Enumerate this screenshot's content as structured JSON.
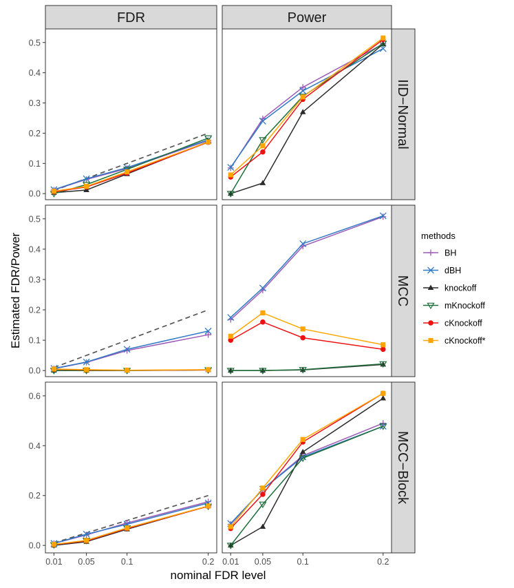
{
  "chart_data": {
    "type": "line",
    "ylabel": "Estimated FDR/Power",
    "xlabel": "nominal FDR level",
    "x": [
      0.01,
      0.05,
      0.1,
      0.2
    ],
    "x_tick_labels": [
      "0.01",
      "0.05",
      "0.1",
      "0.2"
    ],
    "columns": [
      "FDR",
      "Power"
    ],
    "rows": [
      "IID−Normal",
      "MCC",
      "MCC−Block"
    ],
    "legend_title": "methods",
    "reference_line": {
      "style": "dashed",
      "color": "#555555",
      "values": [
        0.01,
        0.05,
        0.1,
        0.2
      ]
    },
    "methods": [
      {
        "name": "BH",
        "color": "#9b59b6",
        "marker": "plus"
      },
      {
        "name": "dBH",
        "color": "#2f78c4",
        "marker": "cross"
      },
      {
        "name": "knockoff",
        "color": "#2b2b2b",
        "marker": "triangle-up"
      },
      {
        "name": "mKnockoff",
        "color": "#1e6e3a",
        "marker": "triangle-down"
      },
      {
        "name": "cKnockoff",
        "color": "#ee1111",
        "marker": "circle"
      },
      {
        "name": "cKnockoff*",
        "color": "#ffa500",
        "marker": "square"
      }
    ],
    "panels": [
      {
        "row": 0,
        "col": 0,
        "ylim": [
          -0.02,
          0.545
        ],
        "yticks": [
          0,
          0.1,
          0.2,
          0.3,
          0.4,
          0.5
        ],
        "ytick_labels": [
          "0.0",
          "0.1",
          "0.2",
          "0.3",
          "0.4",
          "0.5"
        ],
        "reference": true,
        "series": {
          "BH": [
            0.012,
            0.047,
            0.083,
            0.176
          ],
          "dBH": [
            0.013,
            0.049,
            0.086,
            0.178
          ],
          "knockoff": [
            0.003,
            0.012,
            0.065,
            0.172
          ],
          "mKnockoff": [
            0.0,
            0.03,
            0.08,
            0.184
          ],
          "cKnockoff": [
            0.006,
            0.022,
            0.068,
            0.17
          ],
          "cKnockoff*": [
            0.008,
            0.024,
            0.072,
            0.171
          ]
        }
      },
      {
        "row": 0,
        "col": 1,
        "ylim": [
          -0.02,
          0.545
        ],
        "yticks": [
          0,
          0.1,
          0.2,
          0.3,
          0.4,
          0.5
        ],
        "ytick_labels": [
          "0.0",
          "0.1",
          "0.2",
          "0.3",
          "0.4",
          "0.5"
        ],
        "reference": false,
        "series": {
          "BH": [
            0.085,
            0.248,
            0.352,
            0.495
          ],
          "dBH": [
            0.087,
            0.24,
            0.34,
            0.48
          ],
          "knockoff": [
            0.0,
            0.035,
            0.27,
            0.495
          ],
          "mKnockoff": [
            0.0,
            0.178,
            0.322,
            0.497
          ],
          "cKnockoff": [
            0.055,
            0.138,
            0.312,
            0.51
          ],
          "cKnockoff*": [
            0.062,
            0.158,
            0.32,
            0.515
          ]
        }
      },
      {
        "row": 1,
        "col": 0,
        "ylim": [
          -0.02,
          0.545
        ],
        "yticks": [
          0,
          0.1,
          0.2,
          0.3,
          0.4,
          0.5
        ],
        "ytick_labels": [
          "0.0",
          "0.1",
          "0.2",
          "0.3",
          "0.4",
          "0.5"
        ],
        "reference": true,
        "series": {
          "BH": [
            0.006,
            0.027,
            0.066,
            0.118
          ],
          "dBH": [
            0.007,
            0.028,
            0.07,
            0.13
          ],
          "knockoff": [
            0.0,
            0.0,
            0.0,
            0.002
          ],
          "mKnockoff": [
            0.0,
            0.0,
            0.0,
            0.002
          ],
          "cKnockoff": [
            0.004,
            0.002,
            0.001,
            0.002
          ],
          "cKnockoff*": [
            0.005,
            0.003,
            0.001,
            0.003
          ]
        }
      },
      {
        "row": 1,
        "col": 1,
        "ylim": [
          -0.02,
          0.545
        ],
        "yticks": [
          0,
          0.1,
          0.2,
          0.3,
          0.4,
          0.5
        ],
        "ytick_labels": [
          "0.0",
          "0.1",
          "0.2",
          "0.3",
          "0.4",
          "0.5"
        ],
        "reference": false,
        "series": {
          "BH": [
            0.168,
            0.265,
            0.41,
            0.507
          ],
          "dBH": [
            0.175,
            0.272,
            0.418,
            0.51
          ],
          "knockoff": [
            0.0,
            0.0,
            0.002,
            0.02
          ],
          "mKnockoff": [
            0.0,
            0.0,
            0.003,
            0.022
          ],
          "cKnockoff": [
            0.1,
            0.16,
            0.108,
            0.07
          ],
          "cKnockoff*": [
            0.113,
            0.19,
            0.137,
            0.085
          ]
        }
      },
      {
        "row": 2,
        "col": 0,
        "ylim": [
          -0.03,
          0.655
        ],
        "yticks": [
          0,
          0.2,
          0.4,
          0.6
        ],
        "ytick_labels": [
          "0.0",
          "0.2",
          "0.4",
          "0.6"
        ],
        "reference": true,
        "series": {
          "BH": [
            0.008,
            0.042,
            0.09,
            0.175
          ],
          "dBH": [
            0.008,
            0.045,
            0.085,
            0.17
          ],
          "knockoff": [
            0.0,
            0.015,
            0.065,
            0.158
          ],
          "mKnockoff": [
            0.002,
            0.02,
            0.07,
            0.157
          ],
          "cKnockoff": [
            0.003,
            0.018,
            0.068,
            0.157
          ],
          "cKnockoff*": [
            0.004,
            0.02,
            0.07,
            0.158
          ]
        }
      },
      {
        "row": 2,
        "col": 1,
        "ylim": [
          -0.03,
          0.655
        ],
        "yticks": [
          0,
          0.2,
          0.4,
          0.6
        ],
        "ytick_labels": [
          "0.0",
          "0.2",
          "0.4",
          "0.6"
        ],
        "reference": false,
        "series": {
          "BH": [
            0.085,
            0.225,
            0.36,
            0.49
          ],
          "dBH": [
            0.088,
            0.225,
            0.355,
            0.478
          ],
          "knockoff": [
            0.0,
            0.075,
            0.375,
            0.59
          ],
          "mKnockoff": [
            0.0,
            0.165,
            0.35,
            0.478
          ],
          "cKnockoff": [
            0.068,
            0.205,
            0.415,
            0.61
          ],
          "cKnockoff*": [
            0.075,
            0.23,
            0.425,
            0.61
          ]
        }
      }
    ]
  }
}
